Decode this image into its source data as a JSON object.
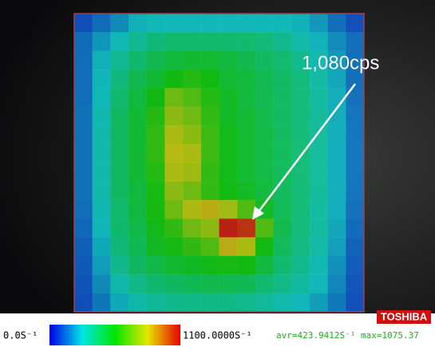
{
  "annotation": "1,080cps",
  "heatmap": {
    "cells": [
      [
        100,
        150,
        200,
        260,
        280,
        280,
        280,
        280,
        280,
        280,
        280,
        280,
        260,
        220,
        150,
        100
      ],
      [
        150,
        220,
        280,
        340,
        380,
        400,
        400,
        400,
        400,
        400,
        380,
        350,
        300,
        260,
        200,
        150
      ],
      [
        150,
        260,
        340,
        400,
        450,
        480,
        500,
        500,
        480,
        450,
        420,
        400,
        350,
        290,
        220,
        150
      ],
      [
        150,
        270,
        370,
        450,
        500,
        550,
        580,
        550,
        500,
        480,
        450,
        420,
        380,
        310,
        240,
        150
      ],
      [
        150,
        280,
        400,
        480,
        550,
        700,
        650,
        580,
        520,
        480,
        450,
        420,
        380,
        320,
        250,
        150
      ],
      [
        160,
        290,
        420,
        500,
        580,
        750,
        700,
        600,
        520,
        500,
        460,
        420,
        380,
        330,
        250,
        160
      ],
      [
        160,
        300,
        420,
        500,
        600,
        800,
        750,
        620,
        540,
        500,
        470,
        430,
        390,
        330,
        250,
        160
      ],
      [
        160,
        300,
        420,
        500,
        600,
        820,
        800,
        620,
        540,
        500,
        470,
        430,
        390,
        330,
        250,
        160
      ],
      [
        160,
        300,
        420,
        500,
        580,
        800,
        780,
        600,
        540,
        500,
        470,
        430,
        390,
        330,
        250,
        160
      ],
      [
        160,
        300,
        420,
        480,
        560,
        750,
        700,
        600,
        550,
        520,
        480,
        430,
        390,
        330,
        250,
        160
      ],
      [
        150,
        290,
        400,
        480,
        560,
        700,
        800,
        850,
        780,
        650,
        520,
        440,
        390,
        320,
        250,
        150
      ],
      [
        140,
        270,
        400,
        460,
        540,
        600,
        700,
        750,
        1080,
        1050,
        650,
        450,
        380,
        320,
        240,
        140
      ],
      [
        130,
        250,
        380,
        440,
        520,
        560,
        600,
        650,
        850,
        800,
        550,
        430,
        370,
        310,
        230,
        130
      ],
      [
        120,
        230,
        350,
        420,
        460,
        500,
        520,
        540,
        560,
        550,
        480,
        400,
        350,
        290,
        210,
        120
      ],
      [
        110,
        200,
        300,
        360,
        400,
        420,
        440,
        450,
        450,
        440,
        400,
        360,
        320,
        270,
        190,
        110
      ],
      [
        100,
        170,
        250,
        300,
        330,
        350,
        360,
        360,
        360,
        350,
        330,
        300,
        270,
        230,
        170,
        100
      ]
    ]
  },
  "colorbar": {
    "min": {
      "value": 0,
      "label": "0.0S⁻¹"
    },
    "max": {
      "value": 1100,
      "label": "1100.0000S⁻¹"
    }
  },
  "stats": {
    "avr": "avr=423.9412S⁻¹",
    "max": "max=1075.37"
  },
  "brand": "TOSHIBA"
}
